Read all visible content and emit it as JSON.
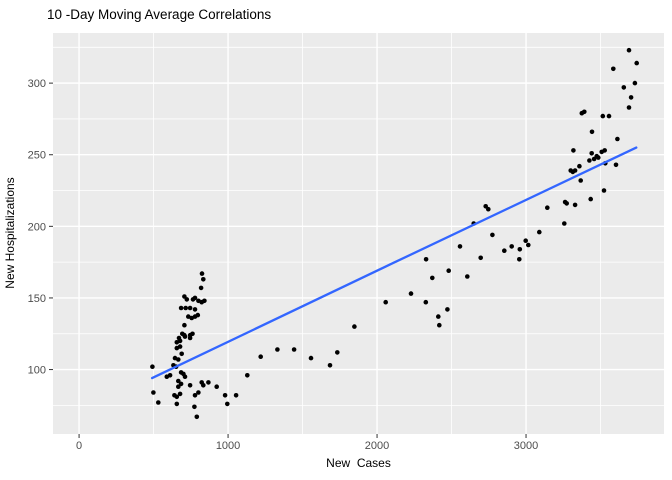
{
  "chart_data": {
    "type": "scatter",
    "title": "10 -Day Moving Average Correlations",
    "xlabel": "New  Cases",
    "ylabel": "New Hospitalizations",
    "x_domain": [
      -175,
      3926
    ],
    "y_domain": [
      55,
      335
    ],
    "x_ticks": [
      0,
      1000,
      2000,
      3000
    ],
    "x_minor_ticks": [
      500,
      1500,
      2500,
      3500
    ],
    "y_ticks": [
      100,
      150,
      200,
      250,
      300
    ],
    "y_minor_ticks": [
      75,
      125,
      175,
      225,
      275,
      325
    ],
    "grid": true,
    "legend": "none",
    "colors": {
      "panel": "#EBEBEB",
      "grid": "#FFFFFF",
      "point": "#000000",
      "smooth_line": "#3366FF",
      "tick_label": "#4D4D4D",
      "tick_mark": "#333333",
      "axis_title": "#000000",
      "title": "#000000",
      "background": "#FFFFFF"
    },
    "points": [
      [
        492,
        102
      ],
      [
        499,
        84
      ],
      [
        532,
        77
      ],
      [
        589,
        95
      ],
      [
        611,
        96
      ],
      [
        633,
        103
      ],
      [
        640,
        82
      ],
      [
        644,
        108
      ],
      [
        651,
        102
      ],
      [
        656,
        119
      ],
      [
        656,
        115
      ],
      [
        656,
        81
      ],
      [
        656,
        76
      ],
      [
        666,
        107
      ],
      [
        666,
        92
      ],
      [
        666,
        88
      ],
      [
        671,
        122
      ],
      [
        678,
        120
      ],
      [
        678,
        116
      ],
      [
        678,
        83
      ],
      [
        685,
        143
      ],
      [
        685,
        98
      ],
      [
        685,
        90
      ],
      [
        689,
        111
      ],
      [
        693,
        125
      ],
      [
        700,
        97
      ],
      [
        707,
        151
      ],
      [
        707,
        131
      ],
      [
        707,
        124
      ],
      [
        711,
        123
      ],
      [
        711,
        95
      ],
      [
        716,
        143
      ],
      [
        723,
        149
      ],
      [
        733,
        137
      ],
      [
        745,
        143
      ],
      [
        745,
        124
      ],
      [
        745,
        122
      ],
      [
        745,
        89
      ],
      [
        756,
        136
      ],
      [
        761,
        125
      ],
      [
        765,
        149
      ],
      [
        774,
        74
      ],
      [
        778,
        150
      ],
      [
        778,
        142
      ],
      [
        778,
        137
      ],
      [
        778,
        82
      ],
      [
        790,
        67
      ],
      [
        797,
        138
      ],
      [
        801,
        148
      ],
      [
        801,
        84
      ],
      [
        819,
        157
      ],
      [
        823,
        147
      ],
      [
        823,
        91
      ],
      [
        825,
        167
      ],
      [
        834,
        163
      ],
      [
        834,
        89
      ],
      [
        841,
        148
      ],
      [
        868,
        91
      ],
      [
        924,
        88
      ],
      [
        980,
        82
      ],
      [
        995,
        76
      ],
      [
        1054,
        82
      ],
      [
        1129,
        96
      ],
      [
        1219,
        109
      ],
      [
        1331,
        114
      ],
      [
        1443,
        114
      ],
      [
        1557,
        108
      ],
      [
        1684,
        103
      ],
      [
        1733,
        112
      ],
      [
        1848,
        130
      ],
      [
        2058,
        147
      ],
      [
        2228,
        153
      ],
      [
        2327,
        147
      ],
      [
        2329,
        177
      ],
      [
        2371,
        164
      ],
      [
        2411,
        137
      ],
      [
        2418,
        131
      ],
      [
        2472,
        142
      ],
      [
        2481,
        169
      ],
      [
        2557,
        186
      ],
      [
        2606,
        165
      ],
      [
        2649,
        202
      ],
      [
        2696,
        178
      ],
      [
        2729,
        214
      ],
      [
        2747,
        212
      ],
      [
        2774,
        194
      ],
      [
        2854,
        183
      ],
      [
        2904,
        186
      ],
      [
        2955,
        177
      ],
      [
        2958,
        184
      ],
      [
        2998,
        190
      ],
      [
        3015,
        187
      ],
      [
        3089,
        196
      ],
      [
        3143,
        213
      ],
      [
        3257,
        202
      ],
      [
        3262,
        217
      ],
      [
        3273,
        216
      ],
      [
        3300,
        239
      ],
      [
        3314,
        238
      ],
      [
        3318,
        253
      ],
      [
        3329,
        239
      ],
      [
        3329,
        215
      ],
      [
        3358,
        242
      ],
      [
        3367,
        232
      ],
      [
        3374,
        279
      ],
      [
        3391,
        280
      ],
      [
        3425,
        246
      ],
      [
        3434,
        219
      ],
      [
        3441,
        251
      ],
      [
        3443,
        266
      ],
      [
        3457,
        247
      ],
      [
        3474,
        249
      ],
      [
        3485,
        248
      ],
      [
        3508,
        252
      ],
      [
        3515,
        277
      ],
      [
        3523,
        225
      ],
      [
        3528,
        253
      ],
      [
        3532,
        244
      ],
      [
        3557,
        277
      ],
      [
        3586,
        310
      ],
      [
        3604,
        243
      ],
      [
        3613,
        261
      ],
      [
        3656,
        297
      ],
      [
        3691,
        323
      ],
      [
        3691,
        283
      ],
      [
        3705,
        290
      ],
      [
        3731,
        300
      ],
      [
        3743,
        314
      ]
    ],
    "smooth_line_points": [
      [
        490,
        94
      ],
      [
        2100,
        174
      ],
      [
        3740,
        255
      ]
    ]
  }
}
